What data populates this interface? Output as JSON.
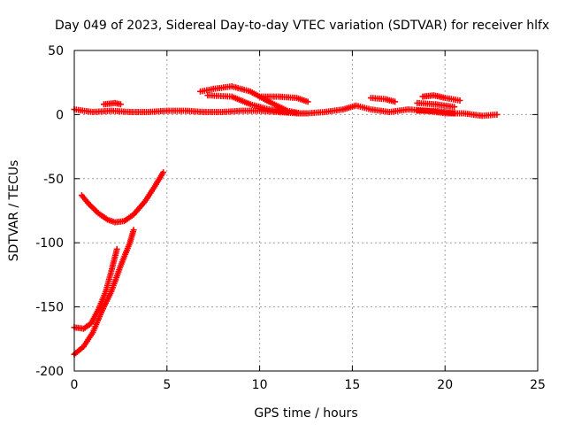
{
  "chart_data": {
    "type": "scatter",
    "title": "Day 049 of 2023, Sidereal Day-to-day VTEC variation (SDTVAR) for receiver hlfx",
    "xlabel": "GPS time / hours",
    "ylabel": "SDTVAR / TECUs",
    "xlim": [
      0,
      25
    ],
    "ylim": [
      -200,
      50
    ],
    "xticks": [
      0,
      5,
      10,
      15,
      20,
      25
    ],
    "yticks": [
      -200,
      -150,
      -100,
      -50,
      0,
      50
    ],
    "grid": true,
    "legend": "none",
    "marker": "plus",
    "color": "#ff0000",
    "series": [
      {
        "points": [
          [
            0,
            4
          ],
          [
            1,
            2
          ],
          [
            2,
            3
          ],
          [
            3,
            2
          ],
          [
            4,
            2
          ],
          [
            5,
            3
          ],
          [
            6,
            3
          ],
          [
            7,
            2
          ],
          [
            8,
            2
          ],
          [
            9,
            3
          ],
          [
            10,
            3
          ],
          [
            11,
            2
          ],
          [
            12,
            1
          ],
          [
            12.5,
            1
          ]
        ]
      },
      {
        "points": [
          [
            1.6,
            8
          ],
          [
            2.2,
            9
          ],
          [
            2.5,
            8
          ]
        ]
      },
      {
        "points": [
          [
            6.8,
            18
          ],
          [
            7.5,
            20
          ],
          [
            8.5,
            22
          ],
          [
            9.5,
            18
          ],
          [
            10.5,
            10
          ],
          [
            11.5,
            3
          ],
          [
            12.2,
            1
          ]
        ]
      },
      {
        "points": [
          [
            7.2,
            15
          ],
          [
            8.5,
            14
          ],
          [
            9.5,
            8
          ],
          [
            10.5,
            4
          ],
          [
            11.5,
            2
          ]
        ]
      },
      {
        "points": [
          [
            10.0,
            14
          ],
          [
            11.0,
            14
          ],
          [
            12.0,
            13
          ],
          [
            12.6,
            10
          ]
        ]
      },
      {
        "points": [
          [
            12.6,
            1
          ],
          [
            13.5,
            2
          ],
          [
            14.5,
            4
          ],
          [
            15.2,
            7
          ],
          [
            16,
            4
          ],
          [
            17,
            2
          ],
          [
            18,
            4
          ],
          [
            19,
            3
          ],
          [
            20,
            1
          ],
          [
            21,
            1
          ],
          [
            22,
            -1
          ],
          [
            22.8,
            0
          ]
        ]
      },
      {
        "points": [
          [
            16.0,
            13
          ],
          [
            16.8,
            12
          ],
          [
            17.3,
            10
          ]
        ]
      },
      {
        "points": [
          [
            18.8,
            14
          ],
          [
            19.4,
            15
          ],
          [
            20.0,
            13
          ],
          [
            20.8,
            11
          ]
        ]
      },
      {
        "points": [
          [
            18.5,
            9
          ],
          [
            19.5,
            8
          ],
          [
            20.5,
            6
          ]
        ]
      },
      {
        "points": [
          [
            18.5,
            3
          ],
          [
            19.5,
            3
          ],
          [
            20.5,
            1
          ]
        ]
      },
      {
        "points": [
          [
            0.4,
            -63
          ],
          [
            0.8,
            -70
          ],
          [
            1.3,
            -77
          ],
          [
            1.8,
            -82
          ],
          [
            2.2,
            -84
          ],
          [
            2.7,
            -83
          ],
          [
            3.2,
            -78
          ],
          [
            3.8,
            -68
          ],
          [
            4.3,
            -57
          ],
          [
            4.8,
            -45
          ]
        ]
      },
      {
        "points": [
          [
            0,
            -166
          ],
          [
            0.5,
            -167
          ],
          [
            0.9,
            -163
          ],
          [
            1.3,
            -152
          ],
          [
            1.7,
            -138
          ],
          [
            2.0,
            -122
          ],
          [
            2.3,
            -105
          ]
        ]
      },
      {
        "points": [
          [
            0,
            -187
          ],
          [
            0.5,
            -181
          ],
          [
            1.0,
            -170
          ],
          [
            1.5,
            -153
          ],
          [
            2.0,
            -138
          ],
          [
            2.5,
            -118
          ],
          [
            3.0,
            -100
          ],
          [
            3.2,
            -90
          ]
        ]
      }
    ]
  }
}
